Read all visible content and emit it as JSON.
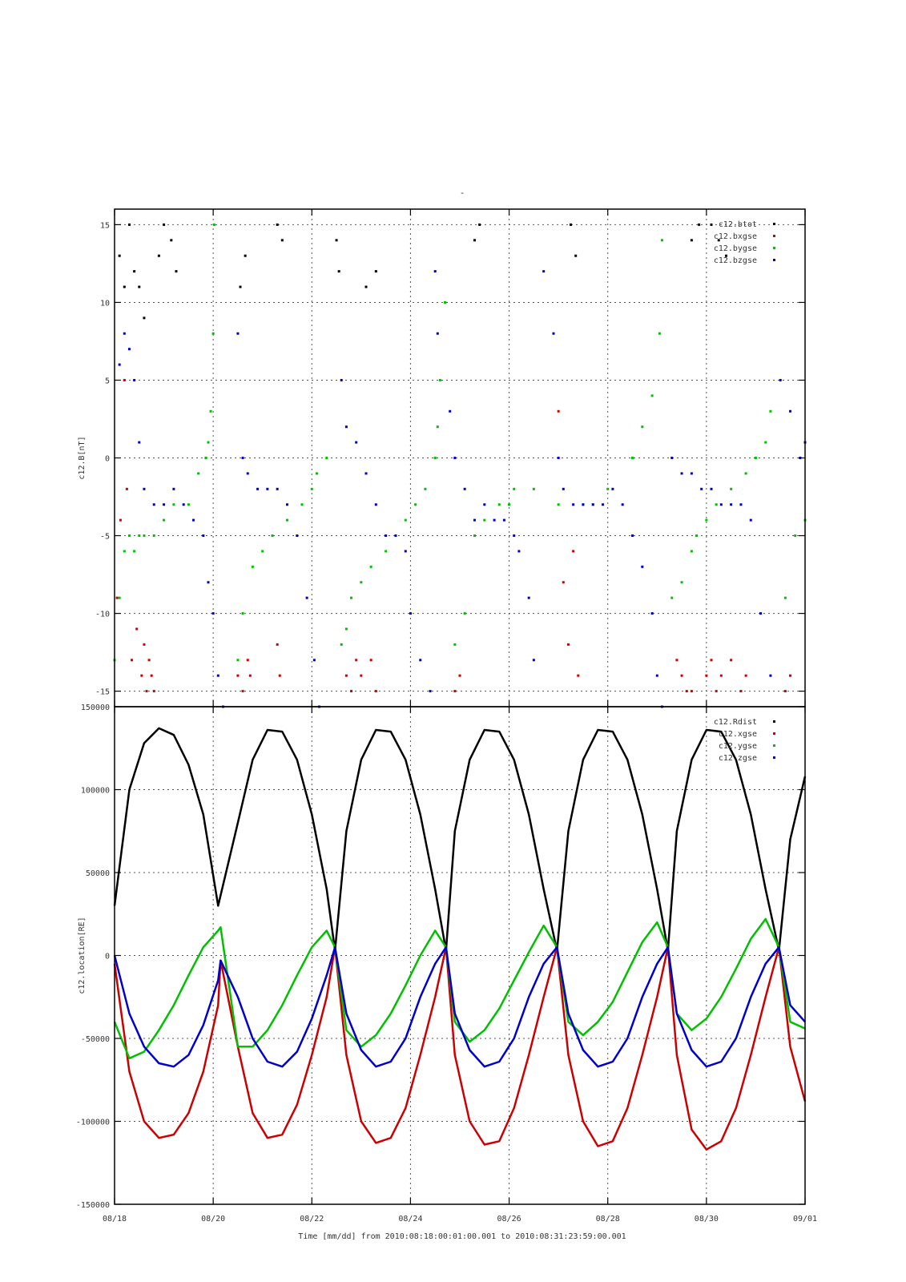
{
  "figure": {
    "top_marker": "-",
    "xlabel": "Time [mm/dd]  from 2010:08:18:00:01:00.001  to  2010:08:31:23:59:00.001",
    "x_ticks": [
      "08/18",
      "08/20",
      "08/22",
      "08/24",
      "08/26",
      "08/28",
      "08/30",
      "09/01"
    ],
    "x_tick_days": [
      0,
      2,
      4,
      6,
      8,
      10,
      12,
      14
    ]
  },
  "chart_data": [
    {
      "type": "scatter",
      "ylabel": "c12.B[nT]",
      "xlim_days": [
        0,
        14
      ],
      "ylim": [
        -16,
        16
      ],
      "y_ticks": [
        -15,
        -10,
        -5,
        0,
        5,
        10,
        15
      ],
      "grid": true,
      "legend_position": "top-right",
      "series": [
        {
          "name": "c12.btot",
          "color": "#000000",
          "x_days": [
            0.1,
            0.2,
            0.3,
            0.4,
            0.5,
            0.6,
            0.9,
            1.0,
            1.15,
            1.25,
            2.55,
            2.65,
            3.3,
            3.4,
            4.5,
            4.55,
            5.1,
            5.3,
            7.3,
            7.4,
            9.25,
            9.35,
            11.7,
            11.85,
            12.1,
            12.25,
            12.4
          ],
          "values": [
            13,
            11,
            15,
            12,
            11,
            9,
            13,
            15,
            14,
            12,
            11,
            13,
            15,
            14,
            14,
            12,
            11,
            12,
            14,
            15,
            15,
            13,
            14,
            15,
            15,
            14,
            13
          ]
        },
        {
          "name": "c12.bxgse",
          "color": "#cc0000",
          "x_days": [
            0.05,
            0.12,
            0.2,
            0.25,
            0.35,
            0.45,
            0.55,
            0.6,
            0.65,
            0.7,
            0.75,
            0.8,
            2.5,
            2.6,
            2.7,
            2.75,
            3.3,
            3.35,
            4.7,
            4.8,
            4.9,
            5.0,
            5.2,
            5.3,
            6.9,
            7.0,
            9.0,
            9.1,
            9.2,
            9.3,
            9.4,
            11.4,
            11.5,
            11.6,
            11.7,
            12.0,
            12.1,
            12.2,
            12.3,
            12.5,
            12.7,
            12.8,
            13.6,
            13.7
          ],
          "values": [
            -9,
            -4,
            5,
            -2,
            -13,
            -11,
            -14,
            -12,
            -15,
            -13,
            -14,
            -15,
            -14,
            -15,
            -13,
            -14,
            -12,
            -14,
            -14,
            -15,
            -13,
            -14,
            -13,
            -15,
            -15,
            -14,
            3,
            -8,
            -12,
            -6,
            -14,
            -13,
            -14,
            -15,
            -15,
            -14,
            -13,
            -15,
            -14,
            -13,
            -15,
            -14,
            -15,
            -14
          ]
        },
        {
          "name": "c12.bygse",
          "color": "#00c000",
          "x_days": [
            0.0,
            0.1,
            0.2,
            0.3,
            0.4,
            0.5,
            0.6,
            0.8,
            1.0,
            1.2,
            1.5,
            1.7,
            1.85,
            1.9,
            1.95,
            2.0,
            2.02,
            2.5,
            2.6,
            2.8,
            3.0,
            3.2,
            3.5,
            3.8,
            4.0,
            4.1,
            4.3,
            4.6,
            4.7,
            4.8,
            5.0,
            5.2,
            5.5,
            5.7,
            5.9,
            6.1,
            6.3,
            6.5,
            6.55,
            6.6,
            6.7,
            6.9,
            7.1,
            7.3,
            7.5,
            7.8,
            8.0,
            8.1,
            8.5,
            9.0,
            9.5,
            9.7,
            10.0,
            10.5,
            10.7,
            10.9,
            11.05,
            11.1,
            11.3,
            11.5,
            11.7,
            11.8,
            12.0,
            12.2,
            12.5,
            12.8,
            13.0,
            13.2,
            13.3,
            13.6,
            13.8,
            14.0
          ],
          "values": [
            -13,
            -9,
            -6,
            -5,
            -6,
            -5,
            -5,
            -5,
            -4,
            -3,
            -3,
            -1,
            0,
            1,
            3,
            8,
            15,
            -13,
            -10,
            -7,
            -6,
            -5,
            -4,
            -3,
            -2,
            -1,
            0,
            -12,
            -11,
            -9,
            -8,
            -7,
            -6,
            -5,
            -4,
            -3,
            -2,
            0,
            2,
            5,
            10,
            -12,
            -10,
            -5,
            -4,
            -3,
            -3,
            -2,
            -2,
            -3,
            -3,
            -3,
            -2,
            0,
            2,
            4,
            8,
            14,
            -9,
            -8,
            -6,
            -5,
            -4,
            -3,
            -2,
            -1,
            0,
            1,
            3,
            -9,
            -5,
            -4
          ]
        },
        {
          "name": "c12.bzgse",
          "color": "#0000cc",
          "x_days": [
            0.1,
            0.2,
            0.3,
            0.4,
            0.5,
            0.6,
            0.8,
            1.0,
            1.2,
            1.4,
            1.6,
            1.8,
            1.9,
            2.0,
            2.1,
            2.2,
            2.5,
            2.6,
            2.7,
            2.9,
            3.1,
            3.3,
            3.5,
            3.7,
            3.9,
            4.05,
            4.15,
            4.6,
            4.7,
            4.9,
            5.1,
            5.3,
            5.5,
            5.7,
            5.9,
            6.0,
            6.2,
            6.4,
            6.5,
            6.55,
            6.8,
            6.9,
            7.1,
            7.3,
            7.5,
            7.7,
            7.9,
            8.1,
            8.2,
            8.4,
            8.5,
            8.7,
            8.9,
            9.0,
            9.1,
            9.3,
            9.5,
            9.7,
            9.9,
            10.1,
            10.3,
            10.5,
            10.7,
            10.9,
            11.0,
            11.1,
            11.3,
            11.5,
            11.7,
            11.9,
            12.1,
            12.3,
            12.5,
            12.7,
            12.9,
            13.1,
            13.3,
            13.5,
            13.7,
            13.9,
            14.0
          ],
          "values": [
            6,
            8,
            7,
            5,
            1,
            -2,
            -3,
            -3,
            -2,
            -3,
            -4,
            -5,
            -8,
            -10,
            -14,
            -16,
            8,
            0,
            -1,
            -2,
            -2,
            -2,
            -3,
            -5,
            -9,
            -13,
            -16,
            5,
            2,
            1,
            -1,
            -3,
            -5,
            -5,
            -6,
            -10,
            -13,
            -15,
            12,
            8,
            3,
            0,
            -2,
            -4,
            -3,
            -4,
            -4,
            -5,
            -6,
            -9,
            -13,
            12,
            8,
            0,
            -2,
            -3,
            -3,
            -3,
            -3,
            -2,
            -3,
            -5,
            -7,
            -10,
            -14,
            -16,
            0,
            -1,
            -1,
            -2,
            -2,
            -3,
            -3,
            -3,
            -4,
            -10,
            -14,
            5,
            3,
            0,
            1
          ]
        }
      ]
    },
    {
      "type": "line",
      "ylabel": "c12.location[RE]",
      "xlim_days": [
        0,
        14
      ],
      "ylim": [
        -150000,
        150000
      ],
      "y_ticks": [
        -150000,
        -100000,
        -50000,
        0,
        50000,
        100000,
        150000
      ],
      "grid": true,
      "legend_position": "top-right",
      "series": [
        {
          "name": "c12.Rdist",
          "color": "#000000",
          "x_days": [
            0.0,
            0.3,
            0.6,
            0.9,
            1.2,
            1.5,
            1.8,
            2.1,
            2.5,
            2.8,
            3.1,
            3.4,
            3.7,
            4.0,
            4.3,
            4.47,
            4.7,
            5.0,
            5.3,
            5.6,
            5.9,
            6.2,
            6.5,
            6.72,
            6.9,
            7.2,
            7.5,
            7.8,
            8.1,
            8.4,
            8.7,
            8.97,
            9.2,
            9.5,
            9.8,
            10.1,
            10.4,
            10.7,
            11.0,
            11.22,
            11.4,
            11.7,
            12.0,
            12.3,
            12.6,
            12.9,
            13.2,
            13.47,
            13.7,
            14.0
          ],
          "values": [
            30000,
            100000,
            128000,
            137000,
            133000,
            115000,
            85000,
            30000,
            80000,
            118000,
            136000,
            135000,
            118000,
            85000,
            40000,
            3000,
            75000,
            118000,
            136000,
            135000,
            118000,
            85000,
            40000,
            3000,
            75000,
            118000,
            136000,
            135000,
            118000,
            85000,
            40000,
            3000,
            75000,
            118000,
            136000,
            135000,
            118000,
            85000,
            40000,
            3000,
            75000,
            118000,
            136000,
            135000,
            118000,
            85000,
            40000,
            3000,
            70000,
            108000
          ]
        },
        {
          "name": "c12.xgse",
          "color": "#cc0000",
          "x_days": [
            0.0,
            0.3,
            0.6,
            0.9,
            1.2,
            1.5,
            1.8,
            2.1,
            2.15,
            2.5,
            2.8,
            3.1,
            3.4,
            3.7,
            4.0,
            4.3,
            4.47,
            4.7,
            5.0,
            5.3,
            5.6,
            5.9,
            6.2,
            6.5,
            6.72,
            6.9,
            7.2,
            7.5,
            7.8,
            8.1,
            8.4,
            8.7,
            8.97,
            9.2,
            9.5,
            9.8,
            10.1,
            10.4,
            10.7,
            11.0,
            11.22,
            11.4,
            11.7,
            12.0,
            12.3,
            12.6,
            12.9,
            13.2,
            13.47,
            13.7,
            14.0
          ],
          "values": [
            -5000,
            -70000,
            -100000,
            -110000,
            -108000,
            -95000,
            -70000,
            -30000,
            -3000,
            -55000,
            -95000,
            -110000,
            -108000,
            -90000,
            -60000,
            -25000,
            5000,
            -60000,
            -100000,
            -113000,
            -110000,
            -92000,
            -60000,
            -25000,
            5000,
            -60000,
            -100000,
            -114000,
            -112000,
            -92000,
            -60000,
            -25000,
            5000,
            -60000,
            -100000,
            -115000,
            -112000,
            -92000,
            -60000,
            -25000,
            5000,
            -60000,
            -105000,
            -117000,
            -112000,
            -92000,
            -60000,
            -25000,
            5000,
            -55000,
            -88000
          ]
        },
        {
          "name": "c12.ygse",
          "color": "#00c000",
          "x_days": [
            0.0,
            0.3,
            0.6,
            0.9,
            1.2,
            1.5,
            1.8,
            2.1,
            2.15,
            2.5,
            2.8,
            3.1,
            3.4,
            3.7,
            4.0,
            4.3,
            4.47,
            4.7,
            5.0,
            5.3,
            5.6,
            5.9,
            6.2,
            6.5,
            6.72,
            6.9,
            7.2,
            7.5,
            7.8,
            8.1,
            8.4,
            8.7,
            8.97,
            9.2,
            9.5,
            9.8,
            10.1,
            10.4,
            10.7,
            11.0,
            11.22,
            11.4,
            11.7,
            12.0,
            12.3,
            12.6,
            12.9,
            13.2,
            13.47,
            13.7,
            14.0
          ],
          "values": [
            -40000,
            -62000,
            -58000,
            -45000,
            -30000,
            -12000,
            5000,
            15000,
            17000,
            -55000,
            -55000,
            -45000,
            -30000,
            -12000,
            5000,
            15000,
            5000,
            -45000,
            -55000,
            -48000,
            -35000,
            -18000,
            0,
            15000,
            5000,
            -40000,
            -52000,
            -45000,
            -32000,
            -15000,
            2000,
            18000,
            5000,
            -40000,
            -48000,
            -40000,
            -28000,
            -10000,
            8000,
            20000,
            5000,
            -35000,
            -45000,
            -38000,
            -25000,
            -8000,
            10000,
            22000,
            5000,
            -40000,
            -44000
          ]
        },
        {
          "name": "c12.zgse",
          "color": "#0000cc",
          "x_days": [
            0.0,
            0.3,
            0.6,
            0.9,
            1.2,
            1.5,
            1.8,
            2.1,
            2.15,
            2.5,
            2.8,
            3.1,
            3.4,
            3.7,
            4.0,
            4.3,
            4.47,
            4.7,
            5.0,
            5.3,
            5.6,
            5.9,
            6.2,
            6.5,
            6.72,
            6.9,
            7.2,
            7.5,
            7.8,
            8.1,
            8.4,
            8.7,
            8.97,
            9.2,
            9.5,
            9.8,
            10.1,
            10.4,
            10.7,
            11.0,
            11.22,
            11.4,
            11.7,
            12.0,
            12.3,
            12.6,
            12.9,
            13.2,
            13.47,
            13.7,
            14.0
          ],
          "values": [
            0,
            -35000,
            -55000,
            -65000,
            -67000,
            -60000,
            -42000,
            -15000,
            -3000,
            -25000,
            -50000,
            -64000,
            -67000,
            -58000,
            -38000,
            -12000,
            5000,
            -35000,
            -57000,
            -67000,
            -64000,
            -50000,
            -25000,
            -5000,
            5000,
            -35000,
            -57000,
            -67000,
            -64000,
            -50000,
            -25000,
            -5000,
            5000,
            -35000,
            -57000,
            -67000,
            -64000,
            -50000,
            -25000,
            -5000,
            5000,
            -35000,
            -57000,
            -67000,
            -64000,
            -50000,
            -25000,
            -5000,
            5000,
            -30000,
            -40000
          ]
        }
      ]
    }
  ]
}
